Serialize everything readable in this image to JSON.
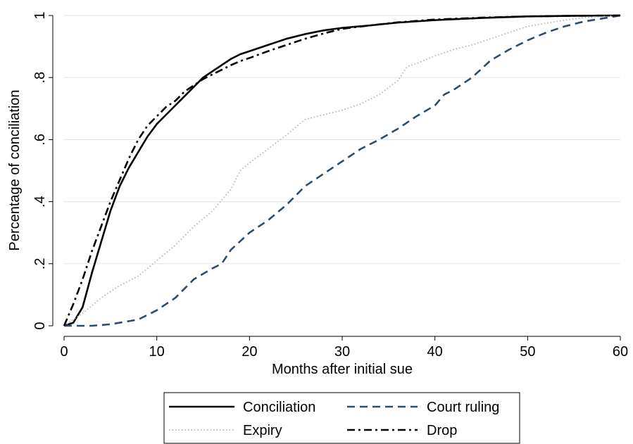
{
  "chart_data": {
    "type": "line",
    "xlabel": "Months after initial sue",
    "ylabel": "Percentage of conciliation",
    "xlim": [
      0,
      60
    ],
    "ylim": [
      0,
      1
    ],
    "xticks": [
      0,
      10,
      20,
      30,
      40,
      50,
      60
    ],
    "xtick_labels": [
      "0",
      "10",
      "20",
      "30",
      "40",
      "50",
      "60"
    ],
    "yticks": [
      0,
      0.2,
      0.4,
      0.6,
      0.8,
      1
    ],
    "ytick_labels": [
      "0",
      ".2",
      ".4",
      ".6",
      ".8",
      "1"
    ],
    "grid": "horizontal",
    "legend_position": "bottom",
    "series": [
      {
        "name": "Conciliation",
        "color": "#000000",
        "dash": "solid",
        "x": [
          0,
          1,
          2,
          3,
          4,
          5,
          6,
          7,
          8,
          9,
          10,
          11,
          12,
          13,
          14,
          15,
          16,
          17,
          18,
          19,
          20,
          22,
          24,
          26,
          28,
          30,
          33,
          36,
          40,
          45,
          50,
          55,
          60
        ],
        "values": [
          0,
          0.01,
          0.06,
          0.17,
          0.27,
          0.37,
          0.45,
          0.51,
          0.56,
          0.61,
          0.65,
          0.68,
          0.71,
          0.74,
          0.77,
          0.8,
          0.82,
          0.84,
          0.86,
          0.875,
          0.885,
          0.905,
          0.925,
          0.94,
          0.952,
          0.96,
          0.968,
          0.977,
          0.985,
          0.992,
          0.997,
          0.999,
          1.0
        ]
      },
      {
        "name": "Court ruling",
        "color": "#2a4d6e",
        "dash": "long-dash",
        "x": [
          0,
          3,
          5,
          7,
          8,
          10,
          12,
          14,
          16,
          17,
          18,
          20,
          22,
          24,
          26,
          28,
          30,
          32,
          34,
          36,
          38,
          40,
          41,
          42,
          44,
          46,
          48,
          50,
          52,
          54,
          56,
          58,
          60
        ],
        "values": [
          0,
          0,
          0.005,
          0.015,
          0.02,
          0.05,
          0.09,
          0.15,
          0.185,
          0.2,
          0.245,
          0.3,
          0.34,
          0.39,
          0.45,
          0.49,
          0.53,
          0.57,
          0.6,
          0.635,
          0.675,
          0.71,
          0.745,
          0.76,
          0.8,
          0.855,
          0.89,
          0.92,
          0.945,
          0.965,
          0.98,
          0.99,
          1.0
        ]
      },
      {
        "name": "Expiry",
        "color": "#b4b4b4",
        "dash": "dotted",
        "x": [
          0,
          2,
          4,
          6,
          8,
          10,
          12,
          14,
          16,
          18,
          19,
          20,
          22,
          24,
          26,
          28,
          30,
          32,
          34,
          36,
          37,
          38,
          40,
          42,
          44,
          46,
          48,
          50,
          52,
          54,
          56,
          58,
          60
        ],
        "values": [
          0,
          0.04,
          0.09,
          0.13,
          0.16,
          0.21,
          0.26,
          0.32,
          0.37,
          0.44,
          0.5,
          0.525,
          0.57,
          0.615,
          0.665,
          0.68,
          0.695,
          0.715,
          0.745,
          0.79,
          0.835,
          0.845,
          0.87,
          0.89,
          0.905,
          0.925,
          0.945,
          0.965,
          0.975,
          0.985,
          0.993,
          0.997,
          1.0
        ]
      },
      {
        "name": "Drop",
        "color": "#000000",
        "dash": "dash-dot",
        "x": [
          0,
          1,
          2,
          3,
          4,
          5,
          6,
          7,
          8,
          9,
          10,
          11,
          12,
          13,
          14,
          15,
          16,
          17,
          18,
          19,
          20,
          22,
          24,
          26,
          28,
          30,
          33,
          36,
          40,
          45,
          50,
          55,
          60
        ],
        "values": [
          0,
          0.07,
          0.15,
          0.24,
          0.32,
          0.4,
          0.47,
          0.54,
          0.6,
          0.645,
          0.675,
          0.705,
          0.725,
          0.755,
          0.775,
          0.795,
          0.81,
          0.825,
          0.84,
          0.853,
          0.863,
          0.885,
          0.905,
          0.925,
          0.942,
          0.957,
          0.968,
          0.978,
          0.987,
          0.993,
          0.997,
          0.999,
          1.0
        ]
      }
    ],
    "legend": {
      "entries": [
        {
          "series": "Conciliation",
          "label": "Conciliation"
        },
        {
          "series": "Court ruling",
          "label": "Court ruling"
        },
        {
          "series": "Expiry",
          "label": "Expiry"
        },
        {
          "series": "Drop",
          "label": "Drop"
        }
      ]
    }
  }
}
